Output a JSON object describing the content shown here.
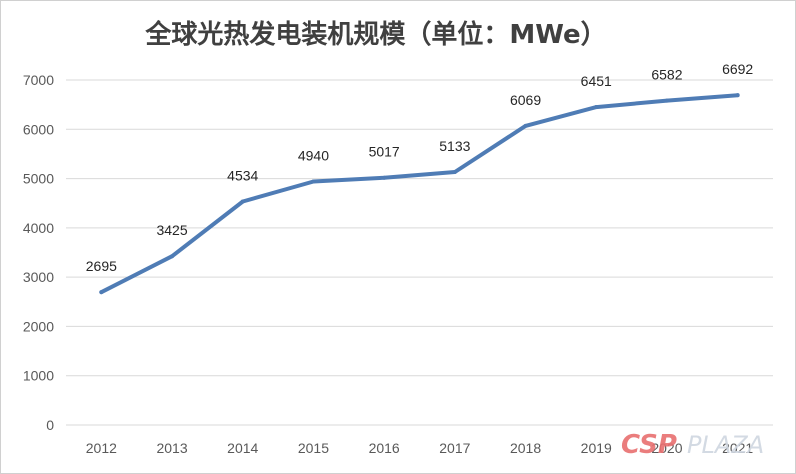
{
  "chart_data": {
    "type": "line",
    "title": "全球光热发电装机规模（单位：MWe）",
    "xlabel": "",
    "ylabel": "",
    "categories": [
      "2012",
      "2013",
      "2014",
      "2015",
      "2016",
      "2017",
      "2018",
      "2019",
      "2020",
      "2021"
    ],
    "series": [
      {
        "values": [
          2695,
          3425,
          4534,
          4940,
          5017,
          5133,
          6069,
          6451,
          6582,
          6692
        ]
      }
    ],
    "ylim": [
      0,
      7000
    ],
    "yticks": [
      "0",
      "1000",
      "2000",
      "3000",
      "4000",
      "5000",
      "6000",
      "7000"
    ],
    "grid": true,
    "legend": "none",
    "data_labels": true
  },
  "colors": {
    "line": "#4f7cb5",
    "watermark_csp": "#e87070",
    "watermark_plaza": "#cfd6e0"
  },
  "watermark": {
    "brand": "CSP",
    "suffix": "PLAZA"
  }
}
